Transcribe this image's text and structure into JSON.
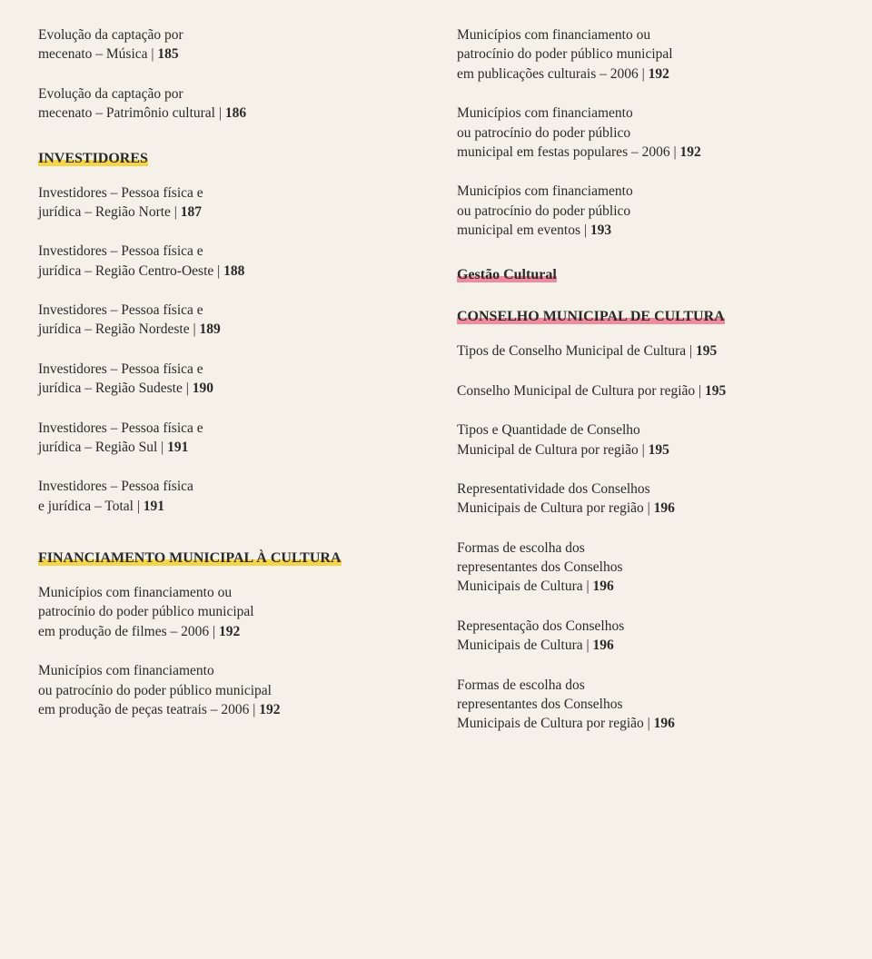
{
  "left": {
    "top": [
      {
        "lines": [
          "Evolução da captação por",
          "mecenato – Música | "
        ],
        "pg": "185"
      },
      {
        "lines": [
          "Evolução da captação por",
          "mecenato – Patrimônio cultural | "
        ],
        "pg": "186"
      }
    ],
    "h1": "INVESTIDORES",
    "investidores": [
      {
        "lines": [
          "Investidores – Pessoa física e",
          "jurídica – Região Norte | "
        ],
        "pg": "187"
      },
      {
        "lines": [
          "Investidores – Pessoa física e",
          "jurídica – Região Centro-Oeste | "
        ],
        "pg": "188"
      },
      {
        "lines": [
          "Investidores – Pessoa física e",
          "jurídica – Região Nordeste | "
        ],
        "pg": "189"
      },
      {
        "lines": [
          "Investidores – Pessoa física e",
          "jurídica – Região Sudeste | "
        ],
        "pg": "190"
      },
      {
        "lines": [
          "Investidores – Pessoa física e",
          "jurídica – Região Sul | "
        ],
        "pg": "191"
      },
      {
        "lines": [
          "Investidores – Pessoa física",
          "e jurídica – Total | "
        ],
        "pg": "191"
      }
    ],
    "h2": "FINANCIAMENTO MUNICIPAL À CULTURA",
    "financ": [
      {
        "lines": [
          "Municípios com financiamento ou",
          "patrocínio do poder público municipal",
          "em produção de filmes – 2006 | "
        ],
        "pg": "192"
      },
      {
        "lines": [
          "Municípios com financiamento",
          "ou patrocínio do poder público municipal",
          "em produção de peças teatrais – 2006 | "
        ],
        "pg": "192"
      }
    ]
  },
  "right": {
    "top": [
      {
        "lines": [
          "Municípios com financiamento ou",
          "patrocínio do poder público municipal",
          "em publicações culturais – 2006 | "
        ],
        "pg": "192"
      },
      {
        "lines": [
          "Municípios com financiamento",
          "ou patrocínio do poder público",
          "municipal em festas populares – 2006 | "
        ],
        "pg": "192"
      },
      {
        "lines": [
          "Municípios com financiamento",
          "ou patrocínio do poder público",
          "municipal em eventos | "
        ],
        "pg": "193"
      }
    ],
    "h1": "Gestão Cultural",
    "h2": "CONSELHO MUNICIPAL DE CULTURA",
    "conselho": [
      {
        "lines": [
          "Tipos de Conselho Municipal de Cultura | "
        ],
        "pg": "195"
      },
      {
        "lines": [
          "Conselho Municipal de Cultura por região | "
        ],
        "pg": "195"
      },
      {
        "lines": [
          "Tipos e Quantidade de Conselho",
          "Municipal de Cultura por região | "
        ],
        "pg": "195"
      },
      {
        "lines": [
          "Representatividade dos Conselhos",
          "Municipais de Cultura por região | "
        ],
        "pg": "196"
      },
      {
        "lines": [
          "Formas de escolha dos",
          "representantes dos Conselhos",
          "Municipais de Cultura | "
        ],
        "pg": "196"
      },
      {
        "lines": [
          "Representação dos Conselhos",
          "Municipais de Cultura | "
        ],
        "pg": "196"
      },
      {
        "lines": [
          "Formas de escolha dos",
          "representantes dos Conselhos",
          "Municipais de Cultura por região | "
        ],
        "pg": "196"
      }
    ]
  }
}
